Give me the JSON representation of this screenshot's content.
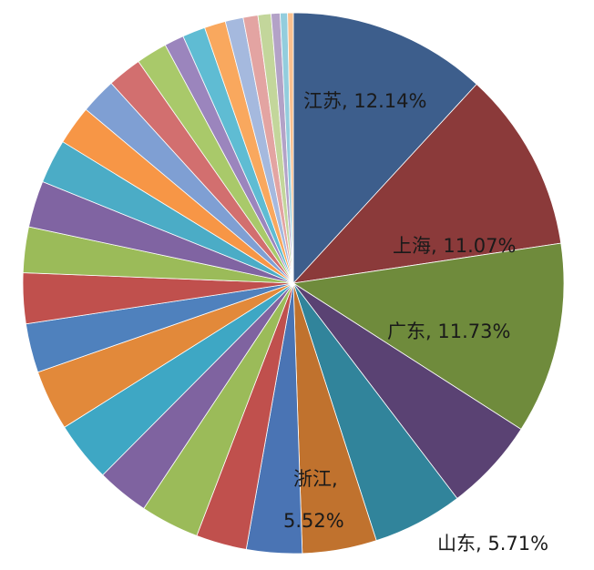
{
  "chart_data": {
    "type": "pie",
    "title": "",
    "start_angle_deg": 0,
    "direction": "clockwise",
    "slices": [
      {
        "label": "江苏",
        "value": 12.14,
        "color": "#3d5e8c",
        "show_label": true,
        "label_text": "江苏, 12.14%"
      },
      {
        "label": "上海",
        "value": 11.07,
        "color": "#8b3a3a",
        "show_label": true,
        "label_text": "上海, 11.07%"
      },
      {
        "label": "广东",
        "value": 11.73,
        "color": "#6f8b3c",
        "show_label": true,
        "label_text": "广东, 11.73%"
      },
      {
        "label": "山东",
        "value": 5.71,
        "color": "#5a4273",
        "show_label": true,
        "label_text": "山东, 5.71%"
      },
      {
        "label": "浙江",
        "value": 5.52,
        "color": "#31849b",
        "show_label": true,
        "label_text_lines": [
          "浙江,",
          "5.52%"
        ]
      },
      {
        "value": 4.55,
        "color": "#c0722e",
        "show_label": false
      },
      {
        "value": 3.4,
        "color": "#4a74b4",
        "show_label": false
      },
      {
        "value": 3.1,
        "color": "#c0504d",
        "show_label": false
      },
      {
        "value": 3.6,
        "color": "#9bbb59",
        "show_label": false
      },
      {
        "value": 3.2,
        "color": "#7f63a0",
        "show_label": false
      },
      {
        "value": 3.7,
        "color": "#3ea7c4",
        "show_label": false
      },
      {
        "value": 3.7,
        "color": "#e2893a",
        "show_label": false
      },
      {
        "value": 3.0,
        "color": "#4f81bd",
        "show_label": false
      },
      {
        "value": 3.1,
        "color": "#c0504d",
        "show_label": false
      },
      {
        "value": 2.8,
        "color": "#9bbb59",
        "show_label": false
      },
      {
        "value": 2.85,
        "color": "#8064a2",
        "show_label": false
      },
      {
        "value": 2.7,
        "color": "#4bacc6",
        "show_label": false
      },
      {
        "value": 2.4,
        "color": "#f79646",
        "show_label": false
      },
      {
        "value": 2.2,
        "color": "#7f9fd3",
        "show_label": false
      },
      {
        "value": 2.1,
        "color": "#d26f6f",
        "show_label": false
      },
      {
        "value": 1.9,
        "color": "#a9c96a",
        "show_label": false
      },
      {
        "value": 1.2,
        "color": "#9b85bd",
        "show_label": false
      },
      {
        "value": 1.4,
        "color": "#5fbcd3",
        "show_label": false
      },
      {
        "value": 1.3,
        "color": "#f9a85e",
        "show_label": false
      },
      {
        "value": 1.1,
        "color": "#a5b9de",
        "show_label": false
      },
      {
        "value": 0.9,
        "color": "#e3a4a2",
        "show_label": false
      },
      {
        "value": 0.8,
        "color": "#c3d69b",
        "show_label": false
      },
      {
        "value": 0.55,
        "color": "#b3a2c7",
        "show_label": false
      },
      {
        "value": 0.45,
        "color": "#93cddd",
        "show_label": false
      },
      {
        "value": 0.35,
        "color": "#fac08f",
        "show_label": false
      }
    ]
  }
}
